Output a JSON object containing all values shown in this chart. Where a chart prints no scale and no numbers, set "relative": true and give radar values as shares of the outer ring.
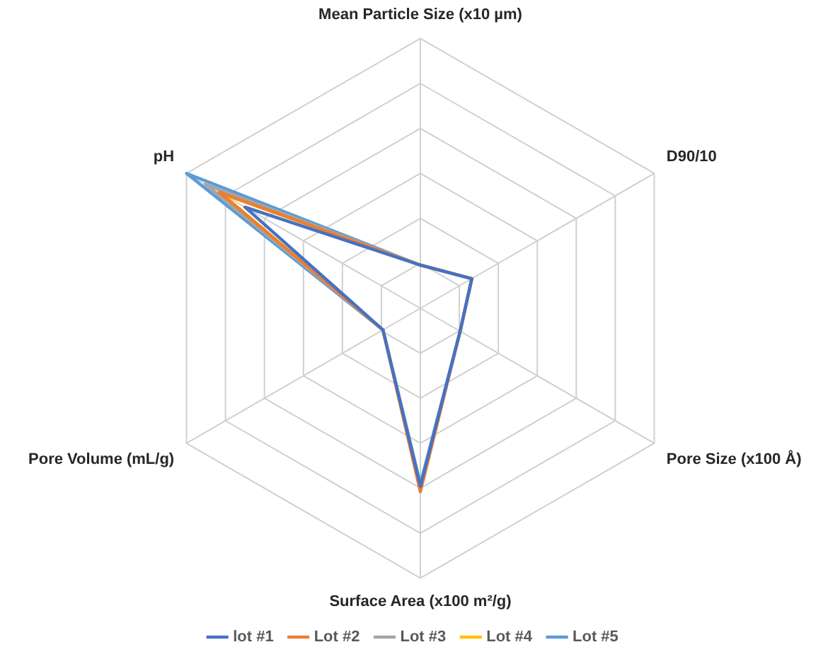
{
  "chart_data": {
    "type": "radar",
    "relative": true,
    "categories": [
      "Mean Particle Size (x10 µm)",
      "D90/10",
      "Pore Size (x100 Å)",
      "Surface Area (x100 m²/g)",
      "Pore Volume (mL/g)",
      "pH"
    ],
    "series": [
      {
        "name": "lot #1",
        "color": "#4472c4",
        "values": [
          0.16,
          0.22,
          0.17,
          0.66,
          0.16,
          0.75
        ]
      },
      {
        "name": "Lot #2",
        "color": "#ed7d31",
        "values": [
          0.16,
          0.22,
          0.17,
          0.68,
          0.16,
          0.86
        ]
      },
      {
        "name": "Lot #3",
        "color": "#a5a5a5",
        "values": [
          0.16,
          0.22,
          0.17,
          0.66,
          0.16,
          0.92
        ]
      },
      {
        "name": "Lot #4",
        "color": "#ffc000",
        "values": [
          0.16,
          0.22,
          0.17,
          0.66,
          0.16,
          0.85
        ]
      },
      {
        "name": "Lot #5",
        "color": "#5b9bd5",
        "values": [
          0.16,
          0.22,
          0.17,
          0.65,
          0.16,
          1.0
        ]
      }
    ],
    "grid": true,
    "legend": "bottom",
    "marker": "none"
  }
}
